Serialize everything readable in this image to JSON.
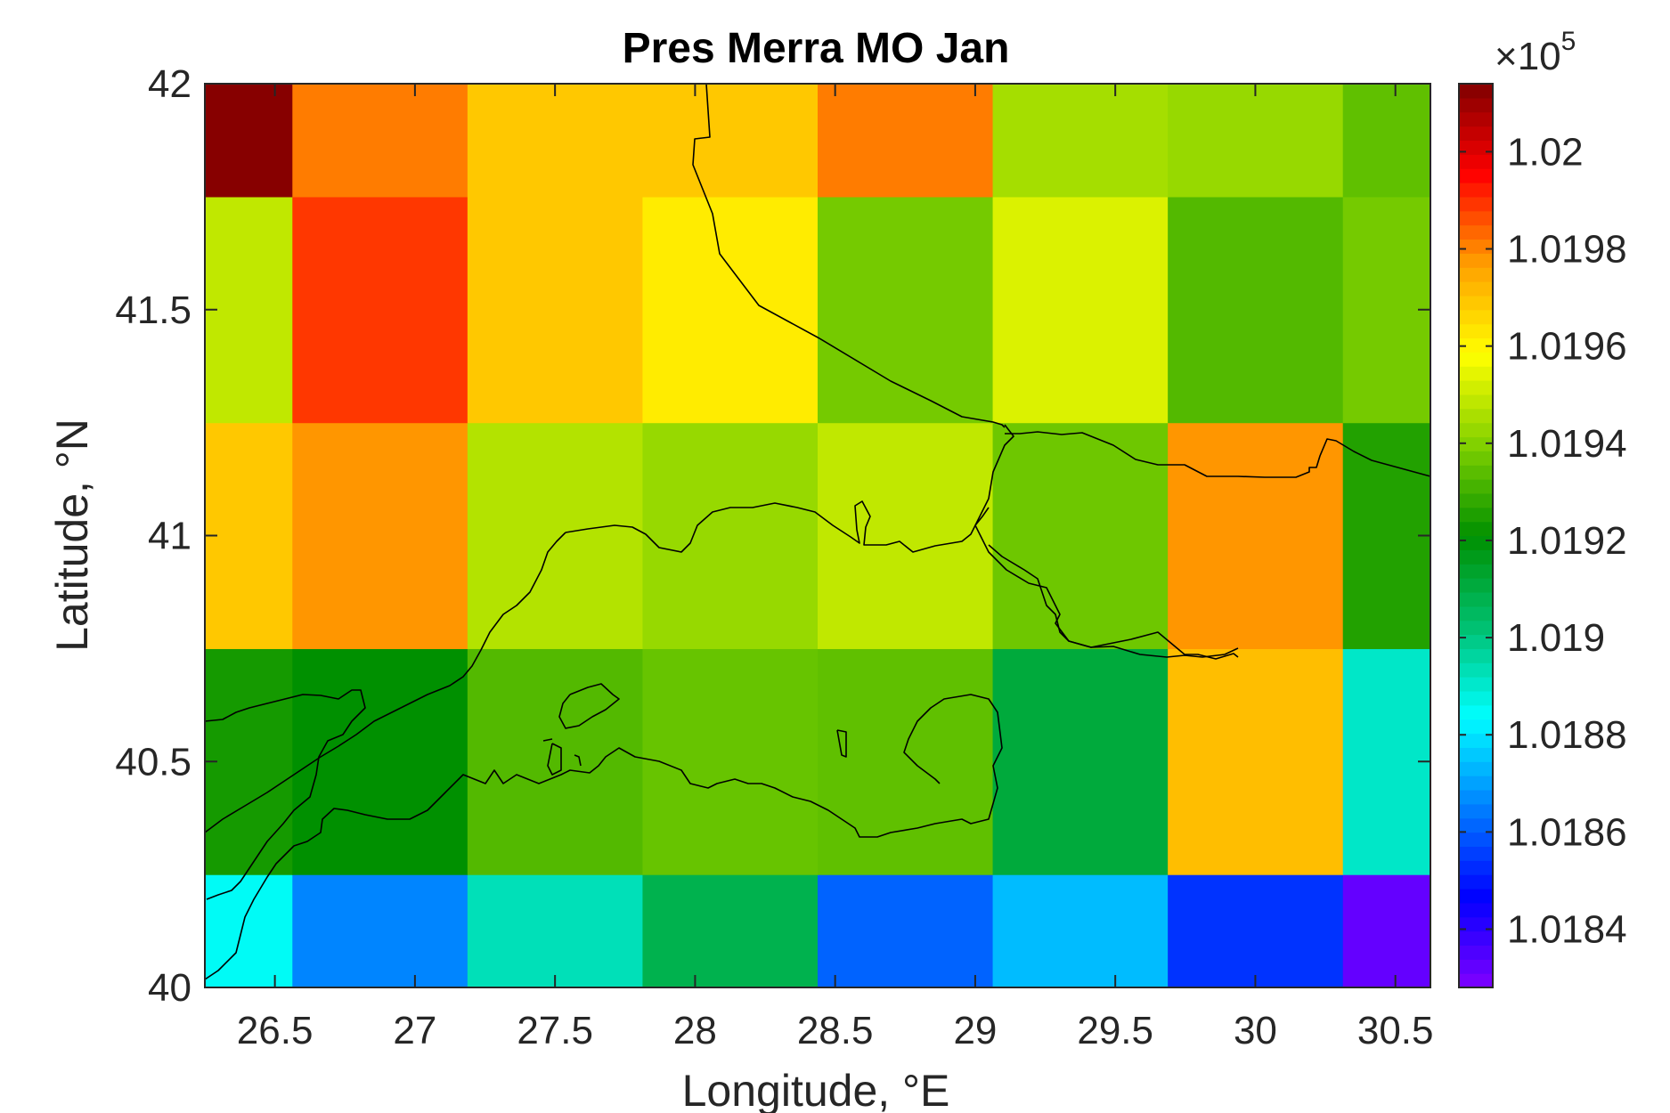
{
  "chart_data": {
    "type": "heatmap",
    "title": "Pres Merra MO Jan",
    "xlabel": "Longitude, °E",
    "ylabel": "Latitude, °N",
    "xlim": [
      26.25,
      30.625
    ],
    "ylim": [
      40,
      42
    ],
    "xticks": [
      26.5,
      27,
      27.5,
      28,
      28.5,
      29,
      29.5,
      30,
      30.5
    ],
    "xtick_labels": [
      "26.5",
      "27",
      "27.5",
      "28",
      "28.5",
      "29",
      "29.5",
      "30",
      "30.5"
    ],
    "yticks": [
      40,
      40.5,
      41,
      41.5,
      42
    ],
    "ytick_labels": [
      "40",
      "40.5",
      "41",
      "41.5",
      "42"
    ],
    "cell_lon_edges": [
      26.25,
      26.5625,
      27.1875,
      27.8125,
      28.4375,
      29.0625,
      29.6875,
      30.3125,
      30.625
    ],
    "cell_lat_edges": [
      40,
      40.25,
      40.75,
      41.25,
      41.75,
      42
    ],
    "cell_rows_bottom_to_top": [
      [
        1.01885,
        1.01866,
        1.01893,
        1.01908,
        1.01861,
        1.01874,
        1.01854,
        1.01832
      ],
      [
        1.01924,
        1.01921,
        1.01933,
        1.01936,
        1.01935,
        1.01911,
        1.01971,
        1.01891
      ],
      [
        1.01969,
        1.01978,
        1.01947,
        1.01943,
        1.01949,
        1.01937,
        1.01978,
        1.01926
      ],
      [
        1.01949,
        1.01989,
        1.01969,
        1.01962,
        1.01938,
        1.01953,
        1.01933,
        1.01938
      ],
      [
        1.02013,
        1.01981,
        1.01969,
        1.01969,
        1.01981,
        1.01945,
        1.01943,
        1.01935
      ]
    ],
    "colorbar": {
      "scale_label": "×10",
      "scale_exponent": "5",
      "range": [
        1.01828,
        1.02014
      ],
      "ticks": [
        1.0184,
        1.0186,
        1.0188,
        1.019,
        1.0192,
        1.0194,
        1.0196,
        1.0198,
        1.02
      ],
      "tick_labels": [
        "1.0184",
        "1.0186",
        "1.0188",
        "1.019",
        "1.0192",
        "1.0194",
        "1.0196",
        "1.0198",
        "1.02"
      ],
      "colormap_stops": [
        "#8000ff",
        "#0000ff",
        "#0080ff",
        "#00ffff",
        "#00c070",
        "#009000",
        "#80d000",
        "#ffff00",
        "#ffa000",
        "#ff0000",
        "#800000"
      ]
    },
    "coastline_color": "#000000",
    "grid": false
  }
}
